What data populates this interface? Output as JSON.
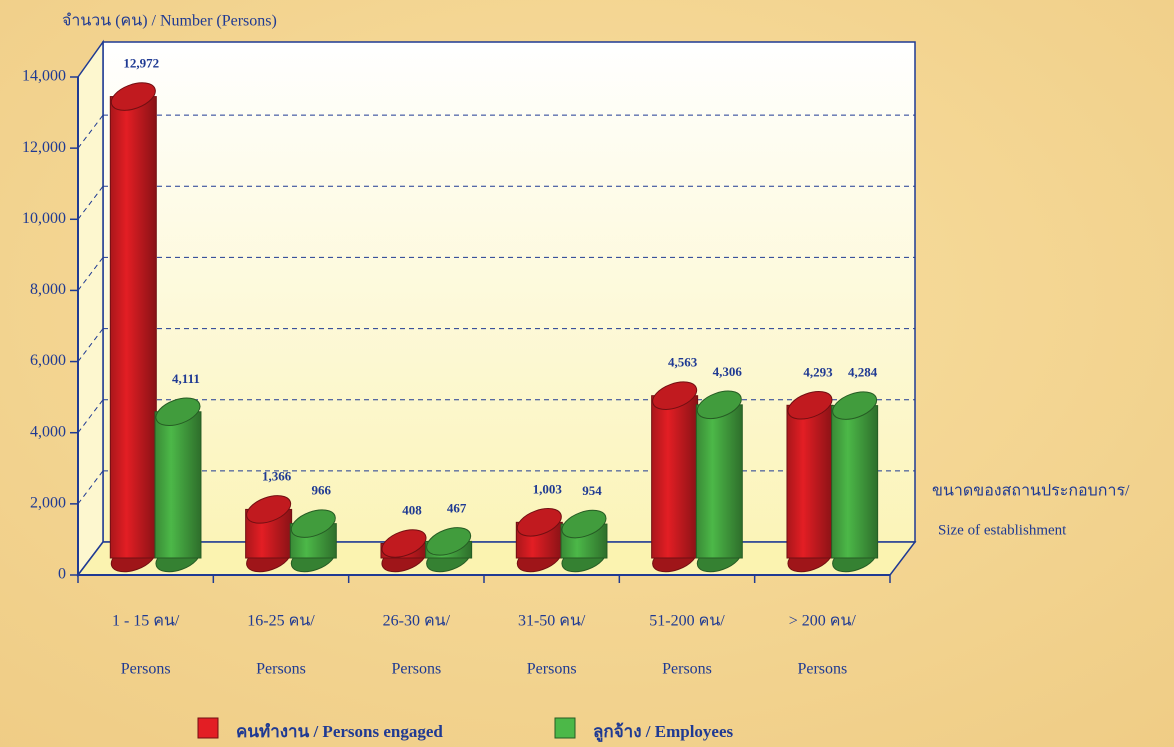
{
  "chart_data": {
    "type": "bar3d",
    "y_label": "จำนวน (คน) / Number  (Persons)",
    "x_label": [
      "ขนาดของสถานประกอบการ/",
      "Size of establishment"
    ],
    "categories": [
      [
        "1 - 15 คน/",
        "Persons"
      ],
      [
        "16-25 คน/",
        "Persons"
      ],
      [
        "26-30 คน/",
        "Persons"
      ],
      [
        "31-50 คน/",
        "Persons"
      ],
      [
        "51-200 คน/",
        "Persons"
      ],
      [
        "> 200 คน/",
        "Persons"
      ]
    ],
    "series": [
      {
        "name": "คนทำงาน / Persons engaged",
        "color": "#e31e24",
        "values": [
          12972,
          1366,
          408,
          1003,
          4563,
          4293
        ],
        "value_labels": [
          "12,972",
          "1,366",
          "408",
          "1,003",
          "4,563",
          "4,293"
        ]
      },
      {
        "name": "ลูกจ้าง / Employees",
        "color": "#4cb848",
        "values": [
          4111,
          966,
          467,
          954,
          4306,
          4284
        ],
        "value_labels": [
          "4,111",
          "966",
          "467",
          "954",
          "4,306",
          "4,284"
        ]
      }
    ],
    "ylim": [
      0,
      14000
    ],
    "yticks": [
      0,
      {
        "value": 2000,
        "label": "2,000"
      },
      {
        "value": 4000,
        "label": "4,000"
      },
      {
        "value": 6000,
        "label": "6,000"
      },
      {
        "value": 8000,
        "label": "8,000"
      },
      {
        "value": 10000,
        "label": "10,000"
      },
      {
        "value": 12000,
        "label": "12,000"
      },
      {
        "value": 14000,
        "label": "14,000"
      }
    ],
    "grid": true
  }
}
